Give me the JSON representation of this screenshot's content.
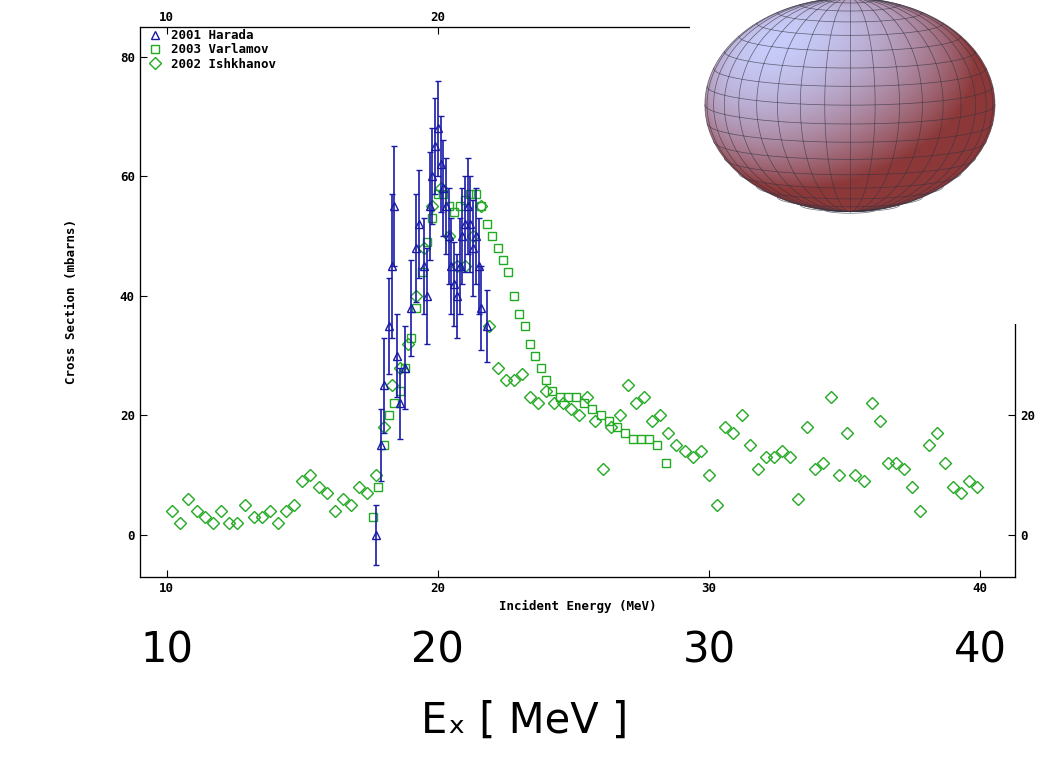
{
  "chart_data": {
    "type": "scatter",
    "xlabel": "Incident Energy (MeV)",
    "ylabel": "Cross Section (mbarns)",
    "xlim": [
      9,
      41.3
    ],
    "xticks": [
      10,
      20,
      30,
      40
    ],
    "ylim": [
      -7,
      85
    ],
    "yticks": [
      0,
      20,
      40,
      60,
      80
    ],
    "x2lim": [
      9,
      41.3
    ],
    "x2ticks": [
      10,
      20
    ],
    "y2lim": [
      -7,
      85
    ],
    "y2ticks": [
      0,
      20
    ],
    "legend": "upper left",
    "annotations": {
      "big_ticks": [
        10,
        20,
        30,
        40
      ],
      "big_label": "Eₓ [ MeV ]"
    },
    "series": [
      {
        "name": "2001 Harada",
        "color": "#1a1aa8",
        "marker": "triangle",
        "x": [
          17.7,
          17.9,
          18.0,
          18.2,
          18.3,
          18.4,
          18.5,
          18.6,
          18.8,
          19.0,
          19.2,
          19.3,
          19.5,
          19.6,
          19.7,
          19.8,
          19.9,
          20.0,
          20.1,
          20.2,
          20.3,
          20.4,
          20.5,
          20.6,
          20.7,
          20.8,
          20.9,
          21.0,
          21.1,
          21.2,
          21.3,
          21.4,
          21.5,
          21.6,
          21.8
        ],
        "values": [
          0,
          15,
          25,
          35,
          45,
          55,
          30,
          22,
          28,
          38,
          48,
          52,
          45,
          40,
          55,
          60,
          65,
          68,
          62,
          58,
          55,
          50,
          45,
          42,
          40,
          45,
          50,
          52,
          55,
          52,
          48,
          50,
          45,
          38,
          35
        ],
        "errors": [
          5,
          6,
          8,
          8,
          12,
          10,
          7,
          6,
          7,
          8,
          9,
          9,
          8,
          8,
          9,
          8,
          8,
          8,
          8,
          8,
          8,
          8,
          8,
          7,
          7,
          8,
          8,
          8,
          8,
          8,
          8,
          8,
          8,
          7,
          6
        ]
      },
      {
        "name": "2003 Varlamov",
        "color": "#22aa22",
        "marker": "square",
        "x": [
          17.6,
          17.8,
          18.0,
          18.2,
          18.4,
          18.6,
          18.8,
          19.0,
          19.2,
          19.4,
          19.6,
          19.8,
          20.0,
          20.2,
          20.4,
          20.6,
          20.8,
          21.0,
          21.2,
          21.4,
          21.6,
          21.8,
          22.0,
          22.2,
          22.4,
          22.6,
          22.8,
          23.0,
          23.2,
          23.4,
          23.6,
          23.8,
          24.0,
          24.2,
          24.5,
          24.8,
          25.1,
          25.4,
          25.7,
          26.0,
          26.3,
          26.6,
          26.9,
          27.2,
          27.5,
          27.8,
          28.1,
          28.4
        ],
        "values": [
          3,
          8,
          15,
          20,
          22,
          24,
          28,
          33,
          38,
          44,
          49,
          53,
          57,
          57,
          55,
          54,
          55,
          56,
          57,
          57,
          55,
          52,
          50,
          48,
          46,
          44,
          40,
          37,
          35,
          32,
          30,
          28,
          26,
          24,
          23,
          23,
          23,
          22,
          21,
          20,
          19,
          18,
          17,
          16,
          16,
          16,
          15,
          12
        ]
      },
      {
        "name": "2002 Ishkhanov",
        "color": "#22aa22",
        "marker": "diamond",
        "x": [
          10.2,
          10.5,
          10.8,
          11.1,
          11.4,
          11.7,
          12.0,
          12.3,
          12.6,
          12.9,
          13.2,
          13.5,
          13.8,
          14.1,
          14.4,
          14.7,
          15.0,
          15.3,
          15.6,
          15.9,
          16.2,
          16.5,
          16.8,
          17.1,
          17.4,
          17.7,
          18.0,
          18.3,
          18.6,
          18.9,
          19.2,
          19.5,
          19.8,
          20.1,
          20.4,
          20.7,
          21.0,
          21.3,
          21.6,
          21.9,
          22.2,
          22.5,
          22.8,
          23.1,
          23.4,
          23.7,
          24.0,
          24.3,
          24.6,
          24.9,
          25.2,
          25.5,
          25.8,
          26.1,
          26.4,
          26.7,
          27.0,
          27.3,
          27.6,
          27.9,
          28.2,
          28.5,
          28.8,
          29.1,
          29.4,
          29.7,
          30.0,
          30.3,
          30.6,
          30.9,
          31.2,
          31.5,
          31.8,
          32.1,
          32.4,
          32.7,
          33.0,
          33.3,
          33.6,
          33.9,
          34.2,
          34.5,
          34.8,
          35.1,
          35.4,
          35.7,
          36.0,
          36.3,
          36.6,
          36.9,
          37.2,
          37.5,
          37.8,
          38.1,
          38.4,
          38.7,
          39.0,
          39.3,
          39.6,
          39.9
        ],
        "values": [
          4,
          2,
          6,
          4,
          3,
          2,
          4,
          2,
          2,
          5,
          3,
          3,
          4,
          2,
          4,
          5,
          9,
          10,
          8,
          7,
          4,
          6,
          5,
          8,
          7,
          10,
          18,
          25,
          28,
          32,
          40,
          48,
          55,
          58,
          50,
          45,
          45,
          50,
          55,
          35,
          28,
          26,
          26,
          27,
          23,
          22,
          24,
          22,
          22,
          21,
          20,
          23,
          19,
          11,
          18,
          20,
          25,
          22,
          23,
          19,
          20,
          17,
          15,
          14,
          13,
          14,
          10,
          5,
          18,
          17,
          20,
          15,
          11,
          13,
          13,
          14,
          13,
          6,
          18,
          11,
          12,
          23,
          10,
          17,
          10,
          9,
          22,
          19,
          12,
          12,
          11,
          8,
          4,
          15,
          17,
          12,
          8,
          7,
          9,
          8
        ]
      }
    ]
  }
}
